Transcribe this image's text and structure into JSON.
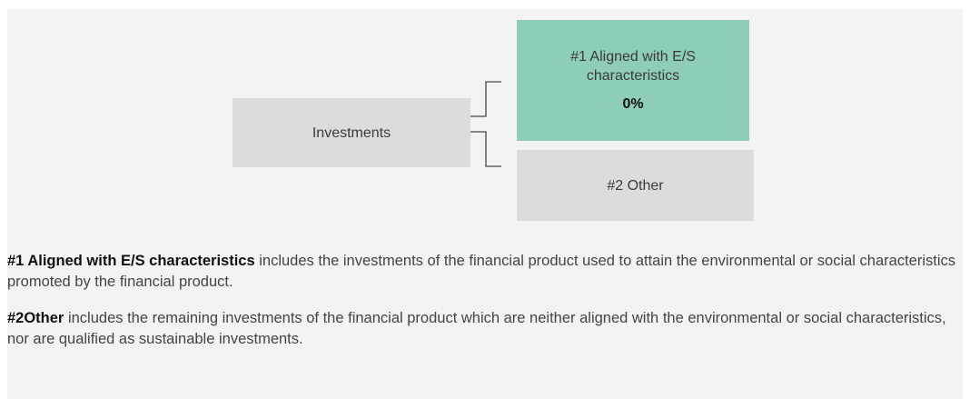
{
  "nodes": [
    {
      "label": "Investments"
    },
    {
      "label": "#1 Aligned with E/S characteristics",
      "value": "0%"
    },
    {
      "label": "#2 Other"
    }
  ],
  "descriptions": [
    {
      "term": "#1 Aligned with E/S characteristics",
      "text": "includes the investments of the financial product used to attain the environmental or social characteristics promoted by the financial product."
    },
    {
      "term": "#2Other",
      "text": "includes the remaining investments of the financial product which are neither aligned with the environmental or social characteristics, nor are qualified as sustainable investments."
    }
  ]
}
